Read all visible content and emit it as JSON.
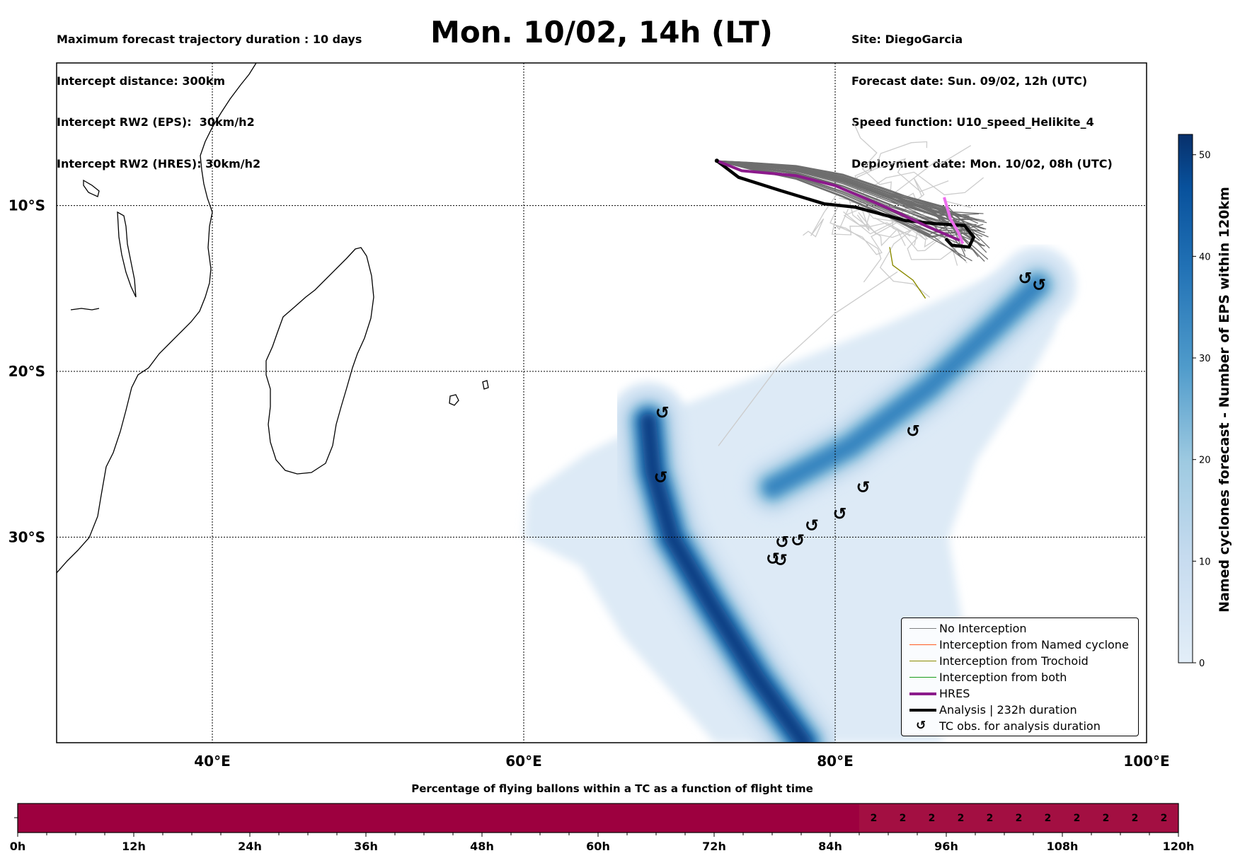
{
  "header": {
    "left_lines": [
      "Maximum forecast trajectory duration : 10 days",
      "Intercept distance: 300km",
      "Intercept RW2 (EPS):  30km/h2",
      "Intercept RW2 (HRES): 30km/h2"
    ],
    "title": "Mon. 10/02, 14h (LT)",
    "right_lines": [
      "Site: DiegoGarcia",
      "Forecast date: Sun. 09/02, 12h (UTC)",
      "Speed function: U10_speed_Helikite_4",
      "Deployment date: Mon. 10/02, 08h (UTC)"
    ]
  },
  "chart_data": [
    {
      "type": "heatmap",
      "title": "Mon. 10/02, 14h (LT)",
      "description_axes": "map",
      "xlabel": "",
      "ylabel": "",
      "x_ticks": [
        {
          "value": 40,
          "label": "40°E"
        },
        {
          "value": 60,
          "label": "60°E"
        },
        {
          "value": 80,
          "label": "80°E"
        },
        {
          "value": 100,
          "label": "100°E"
        }
      ],
      "y_ticks": [
        {
          "value": -10,
          "label": "10°S"
        },
        {
          "value": -20,
          "label": "20°S"
        },
        {
          "value": -30,
          "label": "30°S"
        }
      ],
      "xlim": [
        30,
        100
      ],
      "ylim": [
        -42.4,
        -1.4
      ],
      "grid": true,
      "colorbar": {
        "label": "Named cyclones forecast - Number of EPS within 120km",
        "range": [
          0,
          52
        ],
        "ticks": [
          0,
          10,
          20,
          30,
          40,
          50
        ],
        "colormap": "Blues"
      },
      "density_tracks": [
        {
          "name": "track-west",
          "points": [
            [
              68.0,
              -23.0
            ],
            [
              68.3,
              -26.0
            ],
            [
              69.5,
              -30.0
            ],
            [
              72.0,
              -34.0
            ],
            [
              75.0,
              -38.5
            ],
            [
              78.0,
              -42.4
            ]
          ],
          "peak": 52
        },
        {
          "name": "track-east",
          "points": [
            [
              76.0,
              -27.0
            ],
            [
              81.0,
              -24.5
            ],
            [
              86.0,
              -21.0
            ],
            [
              90.0,
              -17.5
            ],
            [
              93.0,
              -14.8
            ]
          ],
          "peak": 36
        }
      ],
      "tc_observations": [
        [
          92.2,
          -14.4
        ],
        [
          93.1,
          -14.8
        ],
        [
          68.9,
          -22.5
        ],
        [
          68.8,
          -26.4
        ],
        [
          85.0,
          -23.6
        ],
        [
          81.8,
          -27.0
        ],
        [
          80.3,
          -28.6
        ],
        [
          78.5,
          -29.3
        ],
        [
          77.6,
          -30.2
        ],
        [
          76.6,
          -30.3
        ],
        [
          76.0,
          -31.3
        ],
        [
          76.5,
          -31.4
        ]
      ],
      "trajectories": {
        "origin": [
          72.4,
          -7.3
        ],
        "hres": [
          [
            72.4,
            -7.3
          ],
          [
            74.0,
            -7.9
          ],
          [
            77.5,
            -8.2
          ],
          [
            80.0,
            -8.8
          ],
          [
            83.5,
            -10.2
          ],
          [
            86.0,
            -11.3
          ],
          [
            88.0,
            -12.1
          ]
        ],
        "hres_tail": [
          [
            87.0,
            -9.5
          ],
          [
            87.4,
            -10.8
          ],
          [
            87.9,
            -11.6
          ],
          [
            88.2,
            -12.3
          ]
        ],
        "analysis": [
          [
            72.4,
            -7.3
          ],
          [
            73.8,
            -8.3
          ],
          [
            76.5,
            -9.1
          ],
          [
            79.3,
            -9.9
          ],
          [
            81.3,
            -10.1
          ],
          [
            84.5,
            -10.9
          ],
          [
            86.5,
            -11.1
          ],
          [
            88.3,
            -11.2
          ],
          [
            88.9,
            -11.9
          ],
          [
            88.6,
            -12.5
          ],
          [
            87.5,
            -12.4
          ],
          [
            87.1,
            -12.0
          ]
        ],
        "trochoid": [
          [
            83.5,
            -12.5
          ],
          [
            83.7,
            -13.6
          ],
          [
            85.0,
            -14.5
          ],
          [
            85.8,
            -15.6
          ]
        ]
      },
      "legend": {
        "position": "lower-right",
        "entries": [
          {
            "label": "No Interception",
            "color": "#808080",
            "style": "thin"
          },
          {
            "label": "Interception from Named cyclone",
            "color": "#ff5a1f",
            "style": "thin"
          },
          {
            "label": "Interception from Trochoid",
            "color": "#8b8b00",
            "style": "thin"
          },
          {
            "label": "Interception from both",
            "color": "#1a9c1a",
            "style": "thin"
          },
          {
            "label": "HRES",
            "color": "#8b1a8b",
            "style": "thick"
          },
          {
            "label": "Analysis | 232h duration",
            "color": "#000000",
            "style": "thick"
          },
          {
            "label": "TC obs. for analysis duration",
            "color": "#000000",
            "style": "symbol",
            "symbol": "↺"
          }
        ]
      }
    },
    {
      "type": "bar",
      "title": "Percentage of flying ballons within a TC as a function of flight time",
      "xlabel": "",
      "ylabel": "",
      "xlim": [
        0,
        120
      ],
      "x_ticks": [
        "0h",
        "12h",
        "24h",
        "36h",
        "48h",
        "60h",
        "72h",
        "84h",
        "96h",
        "108h",
        "120h"
      ],
      "minor_tick_step_hours": 3,
      "segments": [
        {
          "start": 0,
          "end": 87,
          "value": 0,
          "color": "#9d003f"
        },
        {
          "start": 87,
          "end": 120,
          "value": 2,
          "color": "#a30f42"
        }
      ],
      "cell_labels": [
        {
          "hour": 88.5,
          "label": "2"
        },
        {
          "hour": 91.5,
          "label": "2"
        },
        {
          "hour": 94.5,
          "label": "2"
        },
        {
          "hour": 97.5,
          "label": "2"
        },
        {
          "hour": 100.5,
          "label": "2"
        },
        {
          "hour": 103.5,
          "label": "2"
        },
        {
          "hour": 106.5,
          "label": "2"
        },
        {
          "hour": 109.5,
          "label": "2"
        },
        {
          "hour": 112.5,
          "label": "2"
        },
        {
          "hour": 115.5,
          "label": "2"
        },
        {
          "hour": 118.5,
          "label": "2"
        }
      ]
    }
  ]
}
